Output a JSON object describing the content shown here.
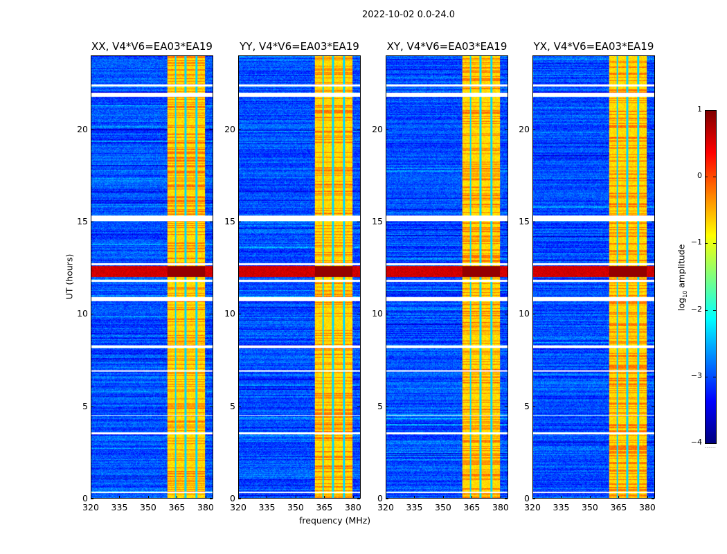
{
  "suptitle": "2022-10-02 0.0-24.0",
  "chart_data": {
    "type": "heatmap",
    "panels": [
      {
        "title": "XX, V4*V6=EA03*EA19"
      },
      {
        "title": "YY, V4*V6=EA03*EA19"
      },
      {
        "title": "XY, V4*V6=EA03*EA19"
      },
      {
        "title": "YX, V4*V6=EA03*EA19"
      }
    ],
    "xlabel": "frequency (MHz)",
    "ylabel": "UT (hours)",
    "xlim": [
      320,
      384
    ],
    "ylim": [
      0,
      24
    ],
    "xticks": [
      "320",
      "335",
      "350",
      "365",
      "380"
    ],
    "xtick_values": [
      320,
      335,
      350,
      365,
      380
    ],
    "yticks": [
      "0",
      "5",
      "10",
      "15",
      "20"
    ],
    "ytick_values": [
      0,
      5,
      10,
      15,
      20
    ],
    "colorbar": {
      "label": "log10 amplitude",
      "label_main": "log",
      "label_sub": "10",
      "label_rest": " amplitude",
      "range": [
        -4,
        1
      ],
      "ticks": [
        "1",
        "0",
        "−1",
        "−2",
        "−3",
        "−4"
      ],
      "tick_values": [
        1,
        0,
        -1,
        -2,
        -3,
        -4
      ],
      "colormap": "jet"
    },
    "background_level": -3.0,
    "rfi_band_mhz": [
      360,
      380
    ],
    "rfi_level": -0.7,
    "rfi_gap_channels_mhz": [
      364.5,
      369.8,
      375.5
    ],
    "strong_rfi_time_h": [
      12.0,
      12.6
    ],
    "strong_rfi_level": 0.6,
    "flagged_time_ranges_h": [
      [
        21.8,
        22.0
      ],
      [
        22.35,
        22.45
      ],
      [
        15.05,
        15.35
      ],
      [
        12.65,
        12.75
      ],
      [
        11.75,
        11.85
      ],
      [
        10.7,
        10.9
      ],
      [
        8.15,
        8.3
      ],
      [
        6.85,
        6.95
      ],
      [
        4.45,
        4.5
      ],
      [
        3.45,
        3.55
      ],
      [
        0.25,
        0.35
      ]
    ]
  }
}
